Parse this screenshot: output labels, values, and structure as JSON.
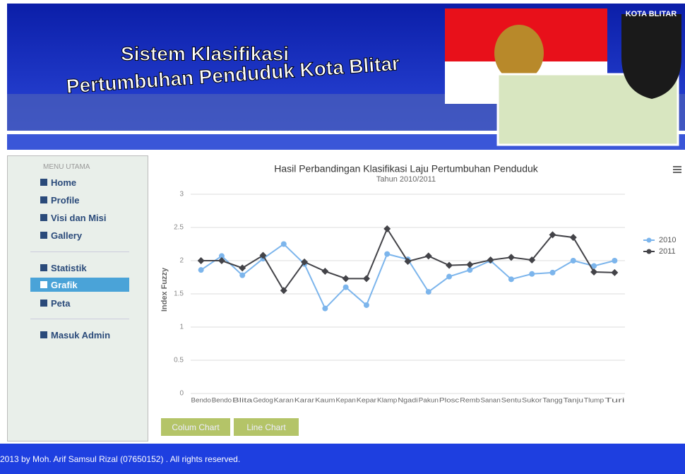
{
  "header": {
    "title_line1": "Sistem Klasifikasi",
    "title_line2": "Pertumbuhan Penduduk Kota Blitar",
    "emblem_label": "KOTA BLITAR"
  },
  "menu": {
    "heading": "MENU UTAMA",
    "items": [
      "Home",
      "Profile",
      "Visi dan Misi",
      "Gallery",
      "Statistik",
      "Grafik",
      "Peta",
      "Masuk Admin"
    ]
  },
  "buttons": [
    "Colum Chart",
    "Line Chart"
  ],
  "footer": "2013 by Moh. Arif Samsul Rizal (07650152) . All rights reserved.",
  "chart_data": {
    "type": "line",
    "title": "Hasil Perbandingan Klasifikasi Laju Pertumbuhan Penduduk",
    "subtitle": "Tahun 2010/2011",
    "y_label": "Index Fuzzy",
    "categories": [
      "Bendo",
      "Bendo",
      "Blita",
      "Gedog",
      "Karan",
      "Karar",
      "Kaum",
      "Kepan",
      "Kepar",
      "Klamp",
      "Ngadi",
      "Pakun",
      "Plosc",
      "Remb",
      "Sanan",
      "Sentu",
      "Sukor",
      "Tangg",
      "Tanju",
      "Tlump",
      "Turi"
    ],
    "series": [
      {
        "name": "2010",
        "color": "#7cb5ec",
        "values": [
          1.86,
          2.07,
          1.78,
          2.03,
          2.25,
          1.95,
          1.28,
          1.6,
          1.33,
          2.1,
          2.02,
          1.53,
          1.76,
          1.86,
          2.0,
          1.72,
          1.8,
          1.82,
          2.0,
          1.92,
          2.0
        ]
      },
      {
        "name": "2011",
        "color": "#434348",
        "values": [
          2.0,
          2.0,
          1.89,
          2.08,
          1.55,
          1.98,
          1.84,
          1.73,
          1.73,
          2.48,
          1.99,
          2.07,
          1.93,
          1.94,
          2.01,
          2.05,
          2.01,
          2.39,
          2.35,
          1.83,
          1.82
        ]
      }
    ],
    "ylim": [
      0,
      3
    ],
    "yticks": [
      0,
      0.5,
      1,
      1.5,
      2,
      2.5,
      3
    ],
    "grid": true,
    "legend": "right"
  }
}
